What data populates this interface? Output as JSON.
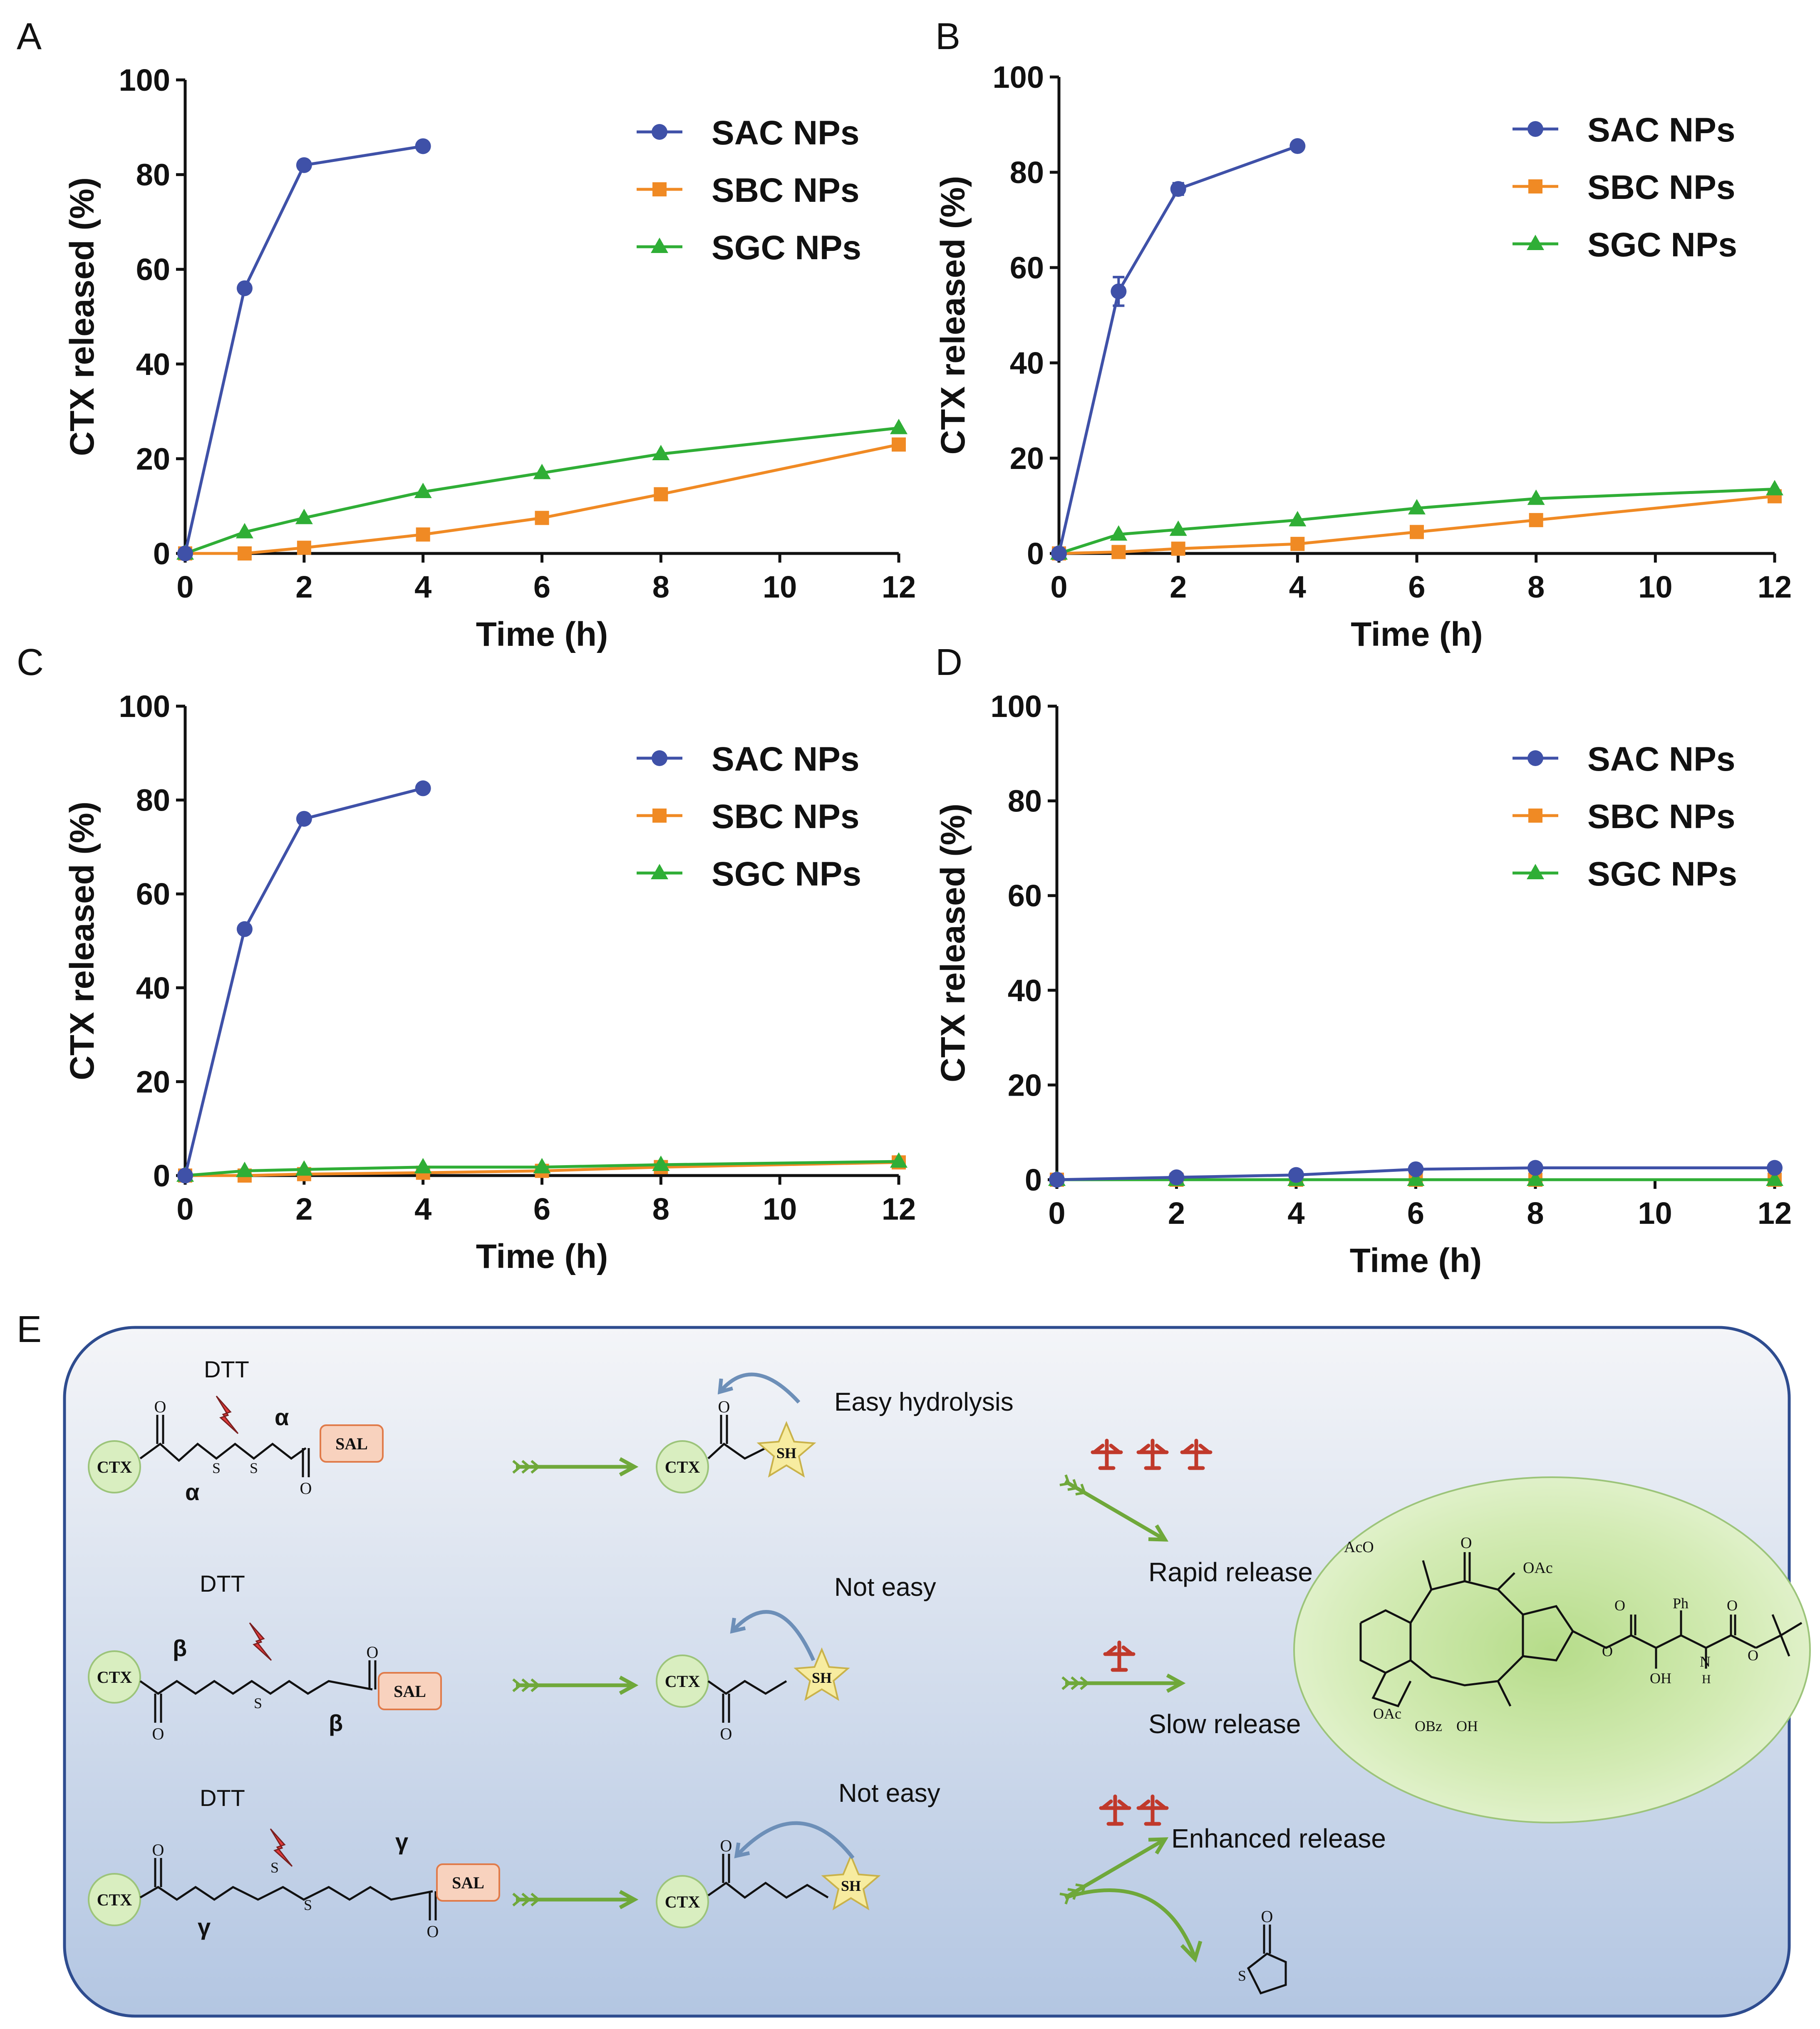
{
  "colors": {
    "SAC": "#3F51A8",
    "SBC": "#F08A24",
    "SGC": "#2FAE36",
    "axis": "#111111",
    "panel_border": "#2E4C8F",
    "panel_top": "#F4F5F8",
    "panel_bottom": "#B3C6E2",
    "cross": "#C0392B",
    "circle_fill": "#D9EEC0",
    "sal_fill": "#F8D2BE",
    "star_fill": "#F7ECA0",
    "arrow": "#6FA83A",
    "curl": "#6D8FB8",
    "bolt": "#E23B3B"
  },
  "chart_data": [
    {
      "panel": "A",
      "type": "line",
      "ylabel": "CTX released  (%)",
      "xlabel": "Time (h)",
      "xlim": [
        0,
        12
      ],
      "ylim": [
        0,
        100
      ],
      "xticks": [
        "0",
        "2",
        "4",
        "6",
        "8",
        "10",
        "12"
      ],
      "yticks": [
        "0",
        "20",
        "40",
        "60",
        "80",
        "100"
      ],
      "legend": "top-right",
      "series": [
        {
          "name": "SAC NPs",
          "key": "SAC",
          "marker": "circle",
          "x": [
            0,
            1,
            2,
            4
          ],
          "y": [
            0,
            56,
            82,
            86
          ]
        },
        {
          "name": "SBC NPs",
          "key": "SBC",
          "marker": "square",
          "x": [
            0,
            1,
            2,
            4,
            6,
            8,
            12
          ],
          "y": [
            0,
            0,
            1.2,
            4,
            7.5,
            12.5,
            23
          ]
        },
        {
          "name": "SGC NPs",
          "key": "SGC",
          "marker": "triangle",
          "x": [
            0,
            1,
            2,
            4,
            6,
            8,
            12
          ],
          "y": [
            0,
            4.5,
            7.5,
            13,
            17,
            21,
            26.5
          ]
        }
      ]
    },
    {
      "panel": "B",
      "type": "line",
      "ylabel": "CTX released  (%)",
      "xlabel": "Time (h)",
      "xlim": [
        0,
        12
      ],
      "ylim": [
        0,
        100
      ],
      "xticks": [
        "0",
        "2",
        "4",
        "6",
        "8",
        "10",
        "12"
      ],
      "yticks": [
        "0",
        "20",
        "40",
        "60",
        "80",
        "100"
      ],
      "legend": "top-right",
      "series": [
        {
          "name": "SAC NPs",
          "key": "SAC",
          "marker": "circle",
          "x": [
            0,
            1,
            2,
            4
          ],
          "y": [
            0,
            55,
            76.5,
            85.5
          ],
          "err": [
            0,
            3,
            1.2,
            0.6
          ]
        },
        {
          "name": "SBC NPs",
          "key": "SBC",
          "marker": "square",
          "x": [
            0,
            1,
            2,
            4,
            6,
            8,
            12
          ],
          "y": [
            0,
            0.3,
            1,
            2,
            4.5,
            7,
            12
          ]
        },
        {
          "name": "SGC NPs",
          "key": "SGC",
          "marker": "triangle",
          "x": [
            0,
            1,
            2,
            4,
            6,
            8,
            12
          ],
          "y": [
            0,
            4,
            5,
            7,
            9.5,
            11.5,
            13.5
          ]
        }
      ]
    },
    {
      "panel": "C",
      "type": "line",
      "ylabel": "CTX released (%)",
      "xlabel": "Time (h)",
      "xlim": [
        0,
        12
      ],
      "ylim": [
        0,
        100
      ],
      "xticks": [
        "0",
        "2",
        "4",
        "6",
        "8",
        "10",
        "12"
      ],
      "yticks": [
        "0",
        "20",
        "40",
        "60",
        "80",
        "100"
      ],
      "legend": "top-right",
      "series": [
        {
          "name": "SAC NPs",
          "key": "SAC",
          "marker": "circle",
          "x": [
            0,
            1,
            2,
            4
          ],
          "y": [
            0,
            52.5,
            76,
            82.5
          ]
        },
        {
          "name": "SBC NPs",
          "key": "SBC",
          "marker": "square",
          "x": [
            0,
            1,
            2,
            4,
            6,
            8,
            12
          ],
          "y": [
            0,
            0,
            0.3,
            0.6,
            1,
            1.8,
            2.8
          ]
        },
        {
          "name": "SGC NPs",
          "key": "SGC",
          "marker": "triangle",
          "x": [
            0,
            1,
            2,
            4,
            6,
            8,
            12
          ],
          "y": [
            0,
            1,
            1.3,
            1.8,
            1.8,
            2.3,
            3
          ]
        }
      ]
    },
    {
      "panel": "D",
      "type": "line",
      "ylabel": "CTX released (%)",
      "xlabel": "Time (h)",
      "xlim": [
        0,
        12
      ],
      "ylim": [
        0,
        100
      ],
      "xticks": [
        "0",
        "2",
        "4",
        "6",
        "8",
        "10",
        "12"
      ],
      "yticks": [
        "0",
        "20",
        "40",
        "60",
        "80",
        "100"
      ],
      "legend": "top-right",
      "series": [
        {
          "name": "SAC NPs",
          "key": "SAC",
          "marker": "circle",
          "x": [
            0,
            2,
            4,
            6,
            8,
            12
          ],
          "y": [
            0,
            0.5,
            1,
            2.2,
            2.5,
            2.5
          ]
        },
        {
          "name": "SBC NPs",
          "key": "SBC",
          "marker": "square",
          "x": [
            0,
            2,
            4,
            6,
            8,
            12
          ],
          "y": [
            0,
            0,
            0,
            0,
            0,
            0
          ]
        },
        {
          "name": "SGC NPs",
          "key": "SGC",
          "marker": "triangle",
          "x": [
            0,
            2,
            4,
            6,
            8,
            12
          ],
          "y": [
            0,
            0,
            0,
            0,
            0,
            0
          ]
        }
      ]
    }
  ],
  "scheme": {
    "label": "E",
    "dtt": "DTT",
    "ctx": "CTX",
    "sal": "SAL",
    "sh": "SH",
    "alpha": "α",
    "beta": "β",
    "gamma": "γ",
    "o": "O",
    "s": "S",
    "texts": {
      "easy": "Easy hydrolysis",
      "not_easy_1": "Not easy",
      "not_easy_2": "Not easy",
      "rapid": "Rapid release",
      "slow": "Slow release",
      "enhanced": "Enhanced release"
    },
    "molecule": {
      "aco": "AcO",
      "oac_top": "OAc",
      "oac_bottom": "OAc",
      "obz": "OBz",
      "oh_bz": "OH",
      "oh_side": "OH",
      "ph": "Ph",
      "nh": "N",
      "h": "H",
      "o": "O"
    }
  }
}
